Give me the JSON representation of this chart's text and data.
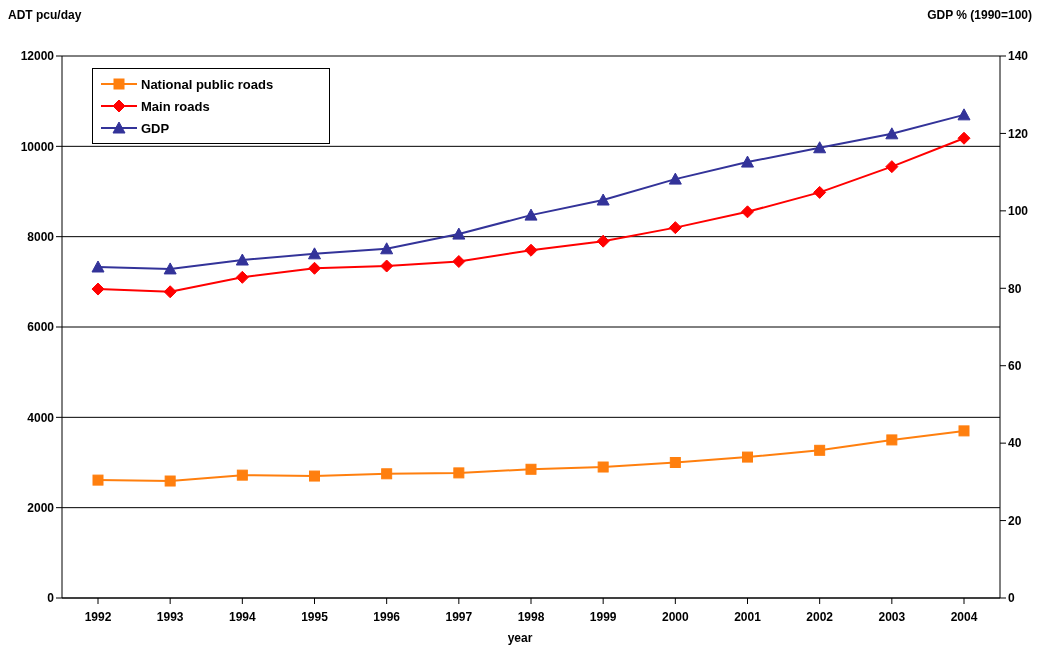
{
  "chart_data": {
    "type": "line",
    "xlabel": "year",
    "ylabel": "ADT pcu/day",
    "y2label": "GDP % (1990=100)",
    "categories": [
      "1992",
      "1993",
      "1994",
      "1995",
      "1996",
      "1997",
      "1998",
      "1999",
      "2000",
      "2001",
      "2002",
      "2003",
      "2004"
    ],
    "series": [
      {
        "name": "National public roads",
        "color": "#ff7f0e",
        "marker": "square",
        "values": [
          2610,
          2590,
          2720,
          2700,
          2750,
          2770,
          2850,
          2900,
          3000,
          3120,
          3270,
          3500,
          3700
        ]
      },
      {
        "name": "Main roads",
        "color": "#ff0000",
        "marker": "diamond",
        "values": [
          6840,
          6780,
          7100,
          7300,
          7350,
          7450,
          7700,
          7900,
          8200,
          8550,
          8980,
          9550,
          10180
        ]
      },
      {
        "name": "GDP",
        "color": "#333399",
        "marker": "triangle",
        "axis": "y2",
        "values": [
          85.5,
          85.0,
          87.3,
          88.9,
          90.2,
          94.0,
          98.9,
          102.8,
          108.2,
          112.6,
          116.3,
          119.9,
          124.8
        ]
      }
    ],
    "ylim": [
      0,
      12000
    ],
    "yticks": [
      0,
      2000,
      4000,
      6000,
      8000,
      10000,
      12000
    ],
    "y2lim": [
      0,
      140
    ],
    "y2ticks": [
      0,
      20,
      40,
      60,
      80,
      100,
      120,
      140
    ],
    "grid": "y",
    "legend": "top left"
  }
}
